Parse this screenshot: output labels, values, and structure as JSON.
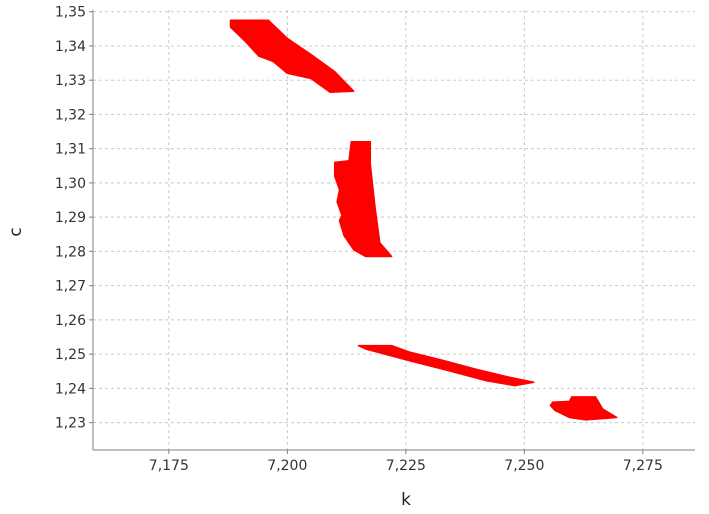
{
  "chart_data": {
    "type": "scatter",
    "title": "",
    "xlabel": "k",
    "ylabel": "c",
    "xlim": [
      7.159,
      7.286
    ],
    "ylim": [
      1.222,
      1.3505
    ],
    "xticks": [
      7.175,
      7.2,
      7.225,
      7.25,
      7.275
    ],
    "xtick_labels": [
      "7,175",
      "7,200",
      "7,225",
      "7,250",
      "7,275"
    ],
    "yticks": [
      1.23,
      1.24,
      1.25,
      1.26,
      1.27,
      1.28,
      1.29,
      1.3,
      1.31,
      1.32,
      1.33,
      1.34,
      1.35
    ],
    "ytick_labels": [
      "1,23",
      "1,24",
      "1,25",
      "1,26",
      "1,27",
      "1,28",
      "1,29",
      "1,30",
      "1,31",
      "1,32",
      "1,33",
      "1,34",
      "1,35"
    ],
    "grid": true,
    "legend": "none",
    "colors": {
      "points": "#ff0000",
      "grid": "#c8c8c8",
      "axis": "#808080",
      "background": "#ffffff"
    },
    "series": [
      {
        "clusters": [
          {
            "polygon": [
              [
                7.188,
                1.3475
              ],
              [
                7.196,
                1.3475
              ],
              [
                7.2,
                1.3422
              ],
              [
                7.205,
                1.3375
              ],
              [
                7.21,
                1.3325
              ],
              [
                7.214,
                1.3268
              ],
              [
                7.209,
                1.3265
              ],
              [
                7.205,
                1.3305
              ],
              [
                7.2,
                1.332
              ],
              [
                7.197,
                1.3355
              ],
              [
                7.194,
                1.337
              ],
              [
                7.191,
                1.3415
              ],
              [
                7.188,
                1.3455
              ]
            ]
          },
          {
            "polygon": [
              [
                7.21,
                1.306
              ],
              [
                7.213,
                1.3065
              ],
              [
                7.2135,
                1.312
              ],
              [
                7.2175,
                1.312
              ],
              [
                7.2175,
                1.3055
              ],
              [
                7.2185,
                1.293
              ],
              [
                7.2195,
                1.2825
              ],
              [
                7.222,
                1.2785
              ],
              [
                7.2165,
                1.2785
              ],
              [
                7.214,
                1.2805
              ],
              [
                7.212,
                1.2845
              ],
              [
                7.211,
                1.289
              ],
              [
                7.2115,
                1.2905
              ],
              [
                7.2105,
                1.2945
              ],
              [
                7.211,
                1.298
              ],
              [
                7.21,
                1.302
              ]
            ]
          },
          {
            "polygon": [
              [
                7.215,
                1.2525
              ],
              [
                7.222,
                1.2525
              ],
              [
                7.226,
                1.2505
              ],
              [
                7.232,
                1.2485
              ],
              [
                7.24,
                1.2455
              ],
              [
                7.247,
                1.2432
              ],
              [
                7.252,
                1.2418
              ],
              [
                7.248,
                1.2408
              ],
              [
                7.242,
                1.2422
              ],
              [
                7.234,
                1.2452
              ],
              [
                7.226,
                1.248
              ],
              [
                7.22,
                1.2502
              ],
              [
                7.2165,
                1.2515
              ]
            ]
          },
          {
            "polygon": [
              [
                7.256,
                1.236
              ],
              [
                7.2595,
                1.2362
              ],
              [
                7.26,
                1.2375
              ],
              [
                7.265,
                1.2375
              ],
              [
                7.2665,
                1.234
              ],
              [
                7.2695,
                1.2315
              ],
              [
                7.263,
                1.2308
              ],
              [
                7.2595,
                1.2315
              ],
              [
                7.2565,
                1.2335
              ],
              [
                7.2555,
                1.235
              ]
            ]
          }
        ]
      }
    ]
  }
}
